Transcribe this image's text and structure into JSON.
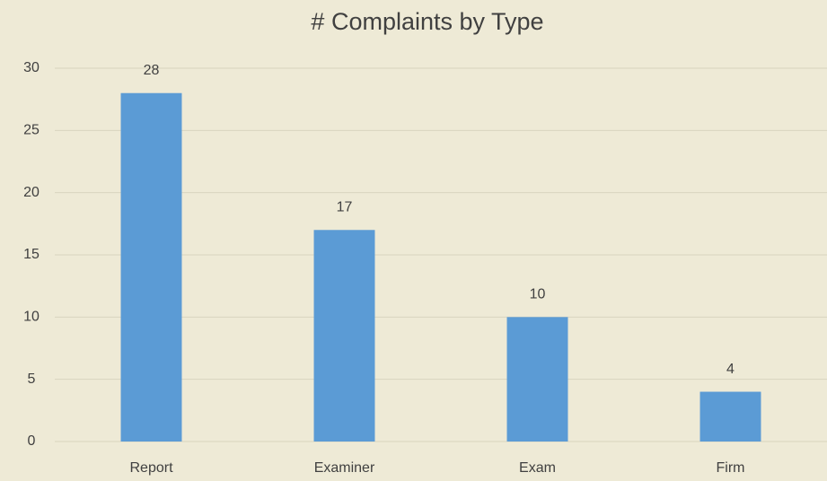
{
  "chart_data": {
    "type": "bar",
    "title": "# Complaints by Type",
    "categories": [
      "Report",
      "Examiner",
      "Exam",
      "Firm"
    ],
    "values": [
      28,
      17,
      10,
      4
    ],
    "color": "#5b9bd5",
    "ylim": [
      0,
      30
    ],
    "yticks": [
      0,
      5,
      10,
      15,
      20,
      25,
      30
    ],
    "grid": true
  }
}
